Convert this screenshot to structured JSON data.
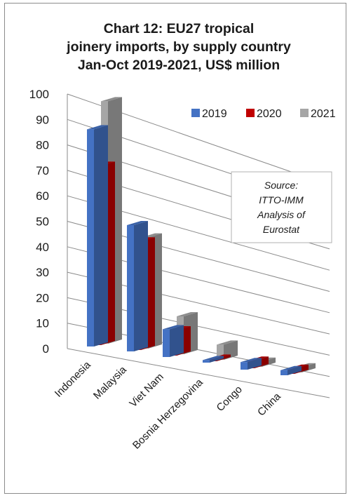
{
  "chart_data": {
    "type": "bar",
    "title_lines": [
      "Chart 12: EU27 tropical",
      "joinery imports, by supply country",
      "Jan-Oct 2019-2021, US$ million"
    ],
    "categories": [
      "Indonesia",
      "Malaysia",
      "Viet Nam",
      "Bosnia Herzegovina",
      "Congo",
      "China"
    ],
    "series": [
      {
        "name": "2019",
        "color": "#4472c4",
        "values": [
          86,
          50,
          11,
          1,
          3,
          2
        ]
      },
      {
        "name": "2020",
        "color": "#c00000",
        "values": [
          71,
          43,
          10,
          1,
          3,
          2
        ]
      },
      {
        "name": "2021",
        "color": "#a6a6a6",
        "values": [
          96,
          44,
          15,
          6,
          2,
          2
        ]
      }
    ],
    "ylim": [
      0,
      100
    ],
    "yticks": [
      "0",
      "10",
      "20",
      "30",
      "40",
      "50",
      "60",
      "70",
      "80",
      "90",
      "100"
    ],
    "grid": true,
    "legend_position": "top-right",
    "annotation_lines": [
      "Source:",
      "ITTO-IMM",
      "Analysis of",
      "Eurostat"
    ]
  }
}
